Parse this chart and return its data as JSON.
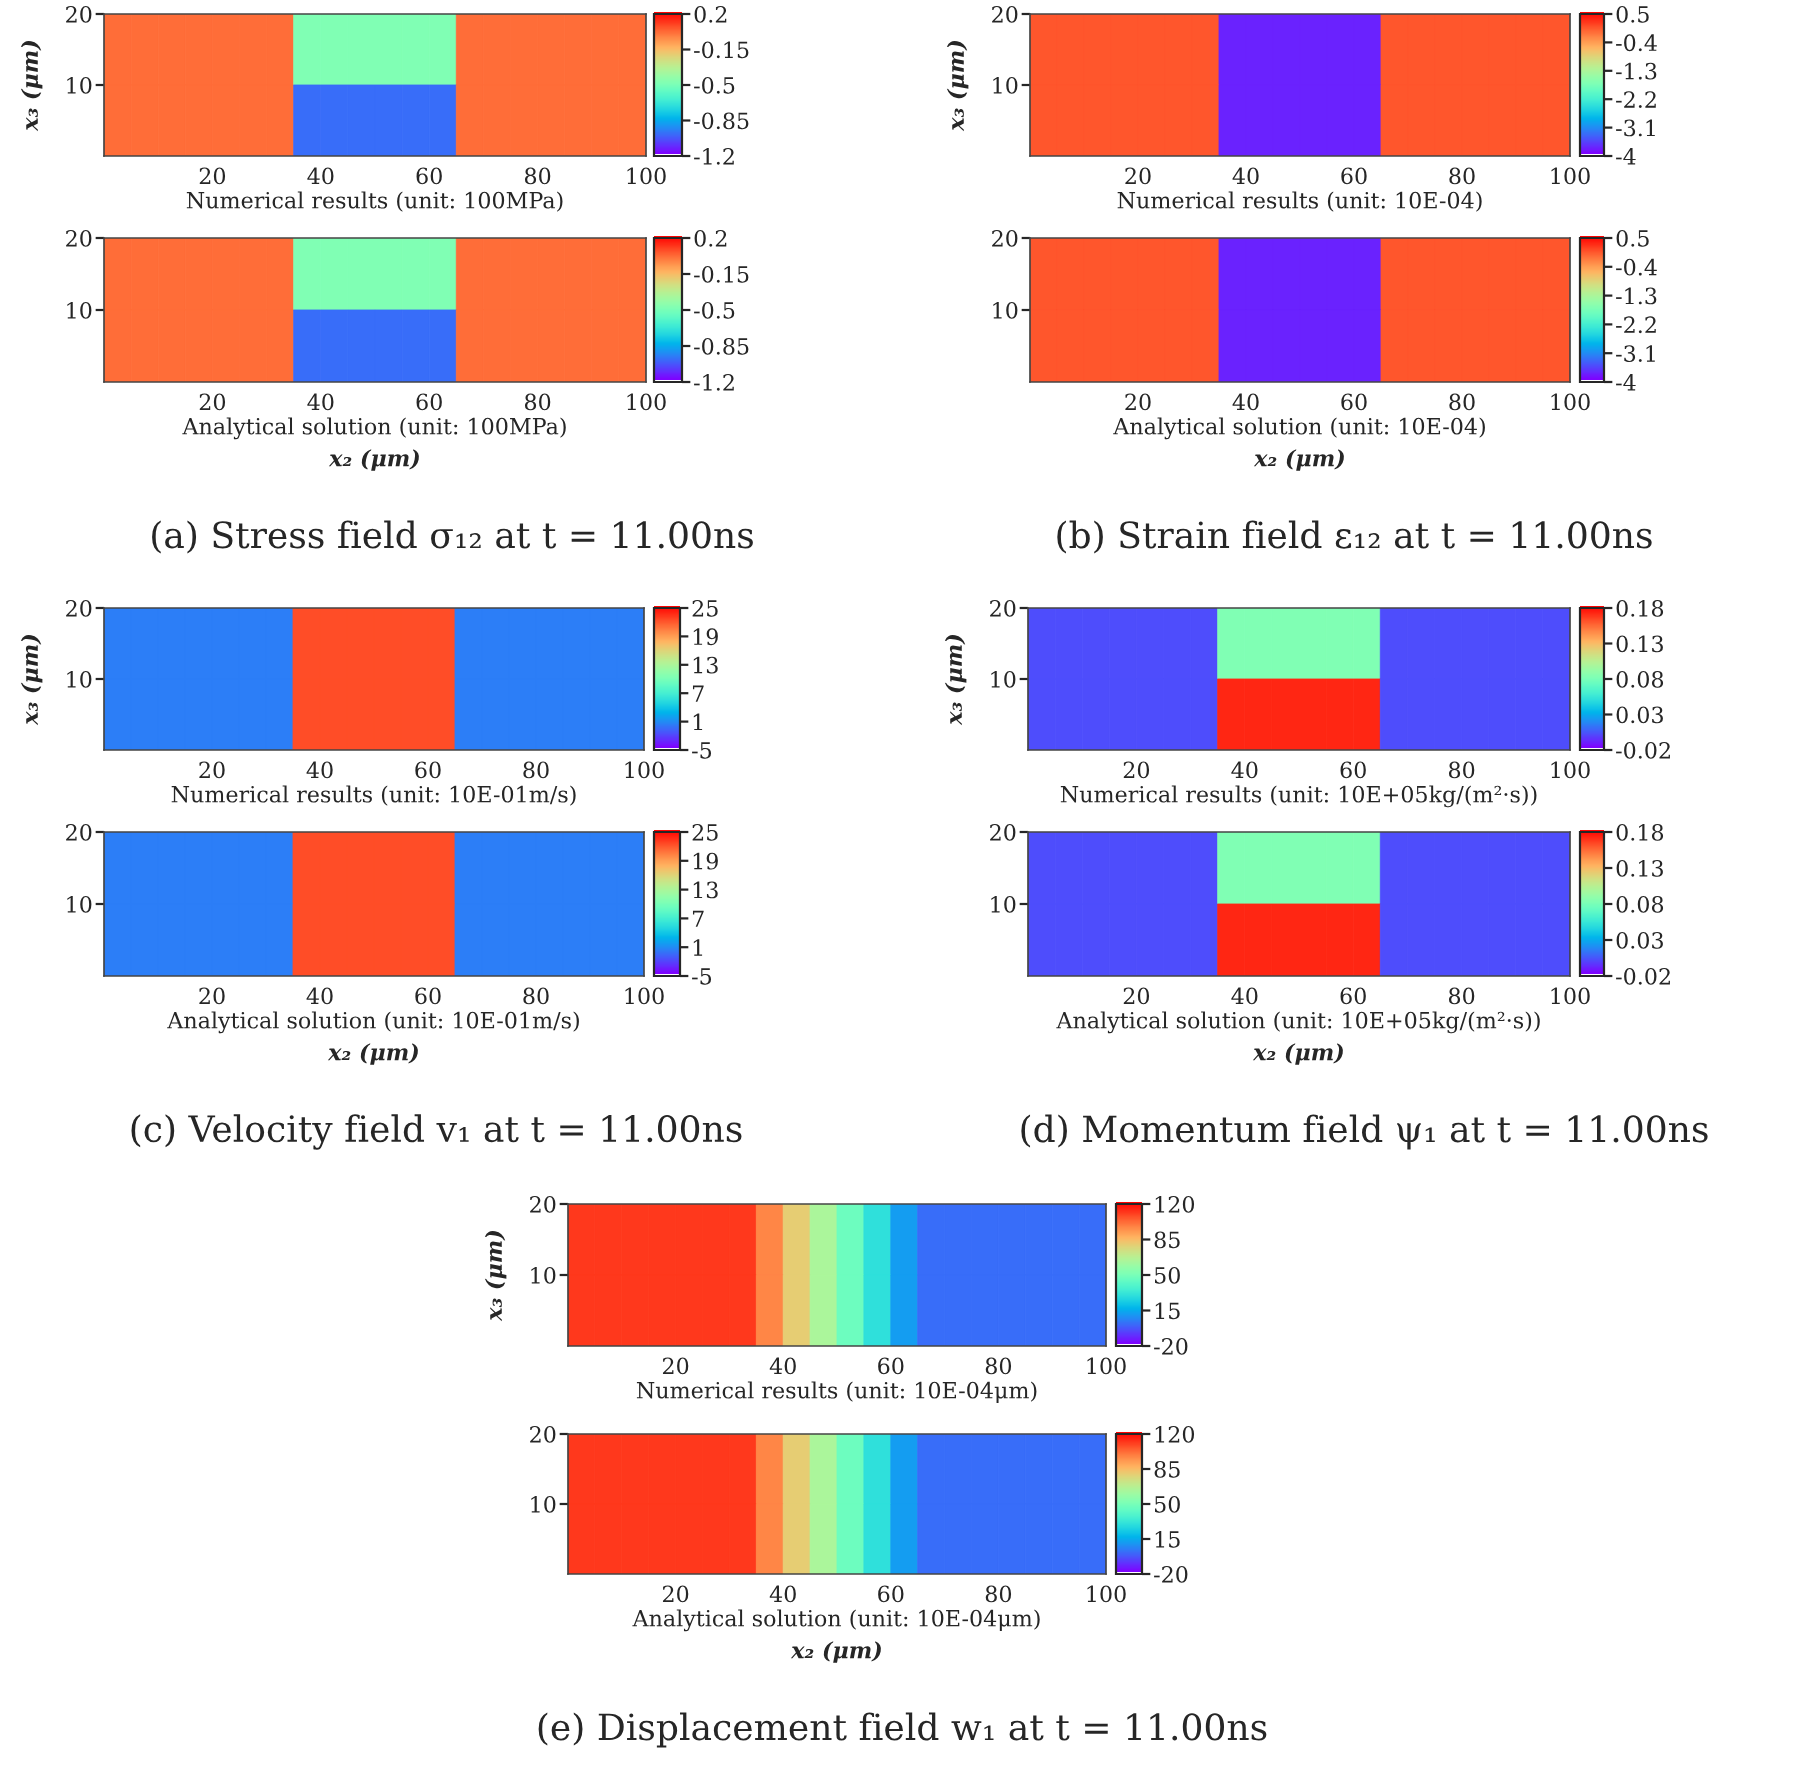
{
  "chart_data": [
    {
      "type": "heatmap",
      "x": [
        2.5,
        7.5,
        12.5,
        17.5,
        22.5,
        27.5,
        32.5,
        37.5,
        42.5,
        47.5,
        52.5,
        57.5,
        62.5,
        67.5,
        72.5,
        77.5,
        82.5,
        87.5,
        92.5,
        97.5
      ],
      "y": [
        15,
        5
      ],
      "cells": [
        [
          0,
          0,
          0,
          0,
          0,
          0,
          0,
          -0.5,
          -0.5,
          -0.5,
          -0.5,
          -0.5,
          -0.5,
          0,
          0,
          0,
          0,
          0,
          0,
          0
        ],
        [
          0,
          0,
          0,
          0,
          0,
          0,
          0,
          -1.0,
          -1.0,
          -1.0,
          -1.0,
          -1.0,
          -1.0,
          0,
          0,
          0,
          0,
          0,
          0,
          0
        ]
      ],
      "xlim": [
        0,
        100
      ],
      "xticks": [
        20,
        40,
        60,
        80,
        100
      ],
      "ylim": [
        0,
        20
      ],
      "yticks": [
        10,
        20
      ],
      "clim": [
        -1.2,
        0.2
      ],
      "cticks": [
        0.2,
        -0.15,
        -0.5,
        -0.85,
        -1.2
      ],
      "xlabel": "Numerical results (unit: 100MPa)",
      "ylabel": "x₃ (μm)"
    },
    {
      "type": "heatmap",
      "x": [
        2.5,
        7.5,
        12.5,
        17.5,
        22.5,
        27.5,
        32.5,
        37.5,
        42.5,
        47.5,
        52.5,
        57.5,
        62.5,
        67.5,
        72.5,
        77.5,
        82.5,
        87.5,
        92.5,
        97.5
      ],
      "y": [
        15,
        5
      ],
      "cells": [
        [
          0,
          0,
          0,
          0,
          0,
          0,
          0,
          -0.5,
          -0.5,
          -0.5,
          -0.5,
          -0.5,
          -0.5,
          0,
          0,
          0,
          0,
          0,
          0,
          0
        ],
        [
          0,
          0,
          0,
          0,
          0,
          0,
          0,
          -1.0,
          -1.0,
          -1.0,
          -1.0,
          -1.0,
          -1.0,
          0,
          0,
          0,
          0,
          0,
          0,
          0
        ]
      ],
      "xlim": [
        0,
        100
      ],
      "xticks": [
        20,
        40,
        60,
        80,
        100
      ],
      "ylim": [
        0,
        20
      ],
      "yticks": [
        10,
        20
      ],
      "clim": [
        -1.2,
        0.2
      ],
      "cticks": [
        0.2,
        -0.15,
        -0.5,
        -0.85,
        -1.2
      ],
      "xlabel": "Analytical solution (unit: 100MPa)",
      "annotations": [
        "x₂ (μm)",
        "(a) Stress field σ₁₂ at t = 11.00ns"
      ]
    },
    {
      "type": "heatmap",
      "x": [
        2.5,
        7.5,
        12.5,
        17.5,
        22.5,
        27.5,
        32.5,
        37.5,
        42.5,
        47.5,
        52.5,
        57.5,
        62.5,
        67.5,
        72.5,
        77.5,
        82.5,
        87.5,
        92.5,
        97.5
      ],
      "y": [
        15,
        5
      ],
      "cells": [
        [
          0,
          0,
          0,
          0,
          0,
          0,
          0,
          -3.8,
          -3.8,
          -3.8,
          -3.8,
          -3.8,
          -3.8,
          0,
          0,
          0,
          0,
          0,
          0,
          0
        ],
        [
          0,
          0,
          0,
          0,
          0,
          0,
          0,
          -3.8,
          -3.8,
          -3.8,
          -3.8,
          -3.8,
          -3.8,
          0,
          0,
          0,
          0,
          0,
          0,
          0
        ]
      ],
      "xlim": [
        0,
        100
      ],
      "xticks": [
        20,
        40,
        60,
        80,
        100
      ],
      "ylim": [
        0,
        20
      ],
      "yticks": [
        10,
        20
      ],
      "clim": [
        -4,
        0.5
      ],
      "cticks": [
        0.5,
        -0.4,
        -1.3,
        -2.2,
        -3.1,
        -4
      ],
      "xlabel": "Numerical results (unit: 10E-04)",
      "ylabel": "x₃ (μm)"
    },
    {
      "type": "heatmap",
      "x": [
        2.5,
        7.5,
        12.5,
        17.5,
        22.5,
        27.5,
        32.5,
        37.5,
        42.5,
        47.5,
        52.5,
        57.5,
        62.5,
        67.5,
        72.5,
        77.5,
        82.5,
        87.5,
        92.5,
        97.5
      ],
      "y": [
        15,
        5
      ],
      "cells": [
        [
          0,
          0,
          0,
          0,
          0,
          0,
          0,
          -3.8,
          -3.8,
          -3.8,
          -3.8,
          -3.8,
          -3.8,
          0,
          0,
          0,
          0,
          0,
          0,
          0
        ],
        [
          0,
          0,
          0,
          0,
          0,
          0,
          0,
          -3.8,
          -3.8,
          -3.8,
          -3.8,
          -3.8,
          -3.8,
          0,
          0,
          0,
          0,
          0,
          0,
          0
        ]
      ],
      "xlim": [
        0,
        100
      ],
      "xticks": [
        20,
        40,
        60,
        80,
        100
      ],
      "ylim": [
        0,
        20
      ],
      "yticks": [
        10,
        20
      ],
      "clim": [
        -4,
        0.5
      ],
      "cticks": [
        0.5,
        -0.4,
        -1.3,
        -2.2,
        -3.1,
        -4
      ],
      "xlabel": "Analytical solution (unit: 10E-04)",
      "annotations": [
        "x₂ (μm)",
        "(b) Strain field ε₁₂ at t = 11.00ns"
      ]
    },
    {
      "type": "heatmap",
      "x": [
        2.5,
        7.5,
        12.5,
        17.5,
        22.5,
        27.5,
        32.5,
        37.5,
        42.5,
        47.5,
        52.5,
        57.5,
        62.5,
        67.5,
        72.5,
        77.5,
        82.5,
        87.5,
        92.5,
        97.5
      ],
      "y": [
        15,
        5
      ],
      "cells": [
        [
          0,
          0,
          0,
          0,
          0,
          0,
          0,
          22,
          22,
          22,
          22,
          22,
          22,
          0,
          0,
          0,
          0,
          0,
          0,
          0
        ],
        [
          0,
          0,
          0,
          0,
          0,
          0,
          0,
          22,
          22,
          22,
          22,
          22,
          22,
          0,
          0,
          0,
          0,
          0,
          0,
          0
        ]
      ],
      "xlim": [
        0,
        100
      ],
      "xticks": [
        20,
        40,
        60,
        80,
        100
      ],
      "ylim": [
        0,
        20
      ],
      "yticks": [
        10,
        20
      ],
      "clim": [
        -5,
        25
      ],
      "cticks": [
        25,
        19,
        13,
        7,
        1,
        -5
      ],
      "xlabel": "Numerical results (unit: 10E-01m/s)",
      "ylabel": "x₃ (μm)"
    },
    {
      "type": "heatmap",
      "x": [
        2.5,
        7.5,
        12.5,
        17.5,
        22.5,
        27.5,
        32.5,
        37.5,
        42.5,
        47.5,
        52.5,
        57.5,
        62.5,
        67.5,
        72.5,
        77.5,
        82.5,
        87.5,
        92.5,
        97.5
      ],
      "y": [
        15,
        5
      ],
      "cells": [
        [
          0,
          0,
          0,
          0,
          0,
          0,
          0,
          22,
          22,
          22,
          22,
          22,
          22,
          0,
          0,
          0,
          0,
          0,
          0,
          0
        ],
        [
          0,
          0,
          0,
          0,
          0,
          0,
          0,
          22,
          22,
          22,
          22,
          22,
          22,
          0,
          0,
          0,
          0,
          0,
          0,
          0
        ]
      ],
      "xlim": [
        0,
        100
      ],
      "xticks": [
        20,
        40,
        60,
        80,
        100
      ],
      "ylim": [
        0,
        20
      ],
      "yticks": [
        10,
        20
      ],
      "clim": [
        -5,
        25
      ],
      "cticks": [
        25,
        19,
        13,
        7,
        1,
        -5
      ],
      "xlabel": "Analytical solution (unit: 10E-01m/s)",
      "annotations": [
        "x₂ (μm)",
        "(c) Velocity field v₁ at t = 11.00ns"
      ]
    },
    {
      "type": "heatmap",
      "x": [
        2.5,
        7.5,
        12.5,
        17.5,
        22.5,
        27.5,
        32.5,
        37.5,
        42.5,
        47.5,
        52.5,
        57.5,
        62.5,
        67.5,
        72.5,
        77.5,
        82.5,
        87.5,
        92.5,
        97.5
      ],
      "y": [
        15,
        5
      ],
      "cells": [
        [
          0,
          0,
          0,
          0,
          0,
          0,
          0,
          0.08,
          0.08,
          0.08,
          0.08,
          0.08,
          0.08,
          0,
          0,
          0,
          0,
          0,
          0,
          0
        ],
        [
          0,
          0,
          0,
          0,
          0,
          0,
          0,
          0.17,
          0.17,
          0.17,
          0.17,
          0.17,
          0.17,
          0,
          0,
          0,
          0,
          0,
          0,
          0
        ]
      ],
      "xlim": [
        0,
        100
      ],
      "xticks": [
        20,
        40,
        60,
        80,
        100
      ],
      "ylim": [
        0,
        20
      ],
      "yticks": [
        10,
        20
      ],
      "clim": [
        -0.02,
        0.18
      ],
      "cticks": [
        0.18,
        0.13,
        0.08,
        0.03,
        -0.02
      ],
      "xlabel": "Numerical results (unit: 10E+05kg/(m²·s))",
      "ylabel": "x₃ (μm)"
    },
    {
      "type": "heatmap",
      "x": [
        2.5,
        7.5,
        12.5,
        17.5,
        22.5,
        27.5,
        32.5,
        37.5,
        42.5,
        47.5,
        52.5,
        57.5,
        62.5,
        67.5,
        72.5,
        77.5,
        82.5,
        87.5,
        92.5,
        97.5
      ],
      "y": [
        15,
        5
      ],
      "cells": [
        [
          0,
          0,
          0,
          0,
          0,
          0,
          0,
          0.08,
          0.08,
          0.08,
          0.08,
          0.08,
          0.08,
          0,
          0,
          0,
          0,
          0,
          0,
          0
        ],
        [
          0,
          0,
          0,
          0,
          0,
          0,
          0,
          0.17,
          0.17,
          0.17,
          0.17,
          0.17,
          0.17,
          0,
          0,
          0,
          0,
          0,
          0,
          0
        ]
      ],
      "xlim": [
        0,
        100
      ],
      "xticks": [
        20,
        40,
        60,
        80,
        100
      ],
      "ylim": [
        0,
        20
      ],
      "yticks": [
        10,
        20
      ],
      "clim": [
        -0.02,
        0.18
      ],
      "cticks": [
        0.18,
        0.13,
        0.08,
        0.03,
        -0.02
      ],
      "xlabel": "Analytical solution (unit: 10E+05kg/(m²·s))",
      "annotations": [
        "x₂ (μm)",
        "(d) Momentum field ψ₁ at t = 11.00ns"
      ]
    },
    {
      "type": "heatmap",
      "x": [
        2.5,
        7.5,
        12.5,
        17.5,
        22.5,
        27.5,
        32.5,
        37.5,
        42.5,
        47.5,
        52.5,
        57.5,
        62.5,
        67.5,
        72.5,
        77.5,
        82.5,
        87.5,
        92.5,
        97.5
      ],
      "y": [
        15,
        5
      ],
      "cells": [
        [
          110,
          110,
          110,
          110,
          110,
          110,
          110,
          95,
          78,
          62,
          45,
          28,
          10,
          0,
          0,
          0,
          0,
          0,
          0,
          0
        ],
        [
          110,
          110,
          110,
          110,
          110,
          110,
          110,
          95,
          78,
          62,
          45,
          28,
          10,
          0,
          0,
          0,
          0,
          0,
          0,
          0
        ]
      ],
      "xlim": [
        0,
        100
      ],
      "xticks": [
        20,
        40,
        60,
        80,
        100
      ],
      "ylim": [
        0,
        20
      ],
      "yticks": [
        10,
        20
      ],
      "clim": [
        -20,
        120
      ],
      "cticks": [
        120,
        85,
        50,
        15,
        -20
      ],
      "xlabel": "Numerical results (unit: 10E-04μm)",
      "ylabel": "x₃ (μm)"
    },
    {
      "type": "heatmap",
      "x": [
        2.5,
        7.5,
        12.5,
        17.5,
        22.5,
        27.5,
        32.5,
        37.5,
        42.5,
        47.5,
        52.5,
        57.5,
        62.5,
        67.5,
        72.5,
        77.5,
        82.5,
        87.5,
        92.5,
        97.5
      ],
      "y": [
        15,
        5
      ],
      "cells": [
        [
          110,
          110,
          110,
          110,
          110,
          110,
          110,
          95,
          78,
          62,
          45,
          28,
          10,
          0,
          0,
          0,
          0,
          0,
          0,
          0
        ],
        [
          110,
          110,
          110,
          110,
          110,
          110,
          110,
          95,
          78,
          62,
          45,
          28,
          10,
          0,
          0,
          0,
          0,
          0,
          0,
          0
        ]
      ],
      "xlim": [
        0,
        100
      ],
      "xticks": [
        20,
        40,
        60,
        80,
        100
      ],
      "ylim": [
        0,
        20
      ],
      "yticks": [
        10,
        20
      ],
      "clim": [
        -20,
        120
      ],
      "cticks": [
        120,
        85,
        50,
        15,
        -20
      ],
      "xlabel": "Analytical solution (unit: 10E-04μm)",
      "annotations": [
        "x₂ (μm)",
        "(e) Displacement field w₁ at t = 11.00ns"
      ]
    }
  ]
}
